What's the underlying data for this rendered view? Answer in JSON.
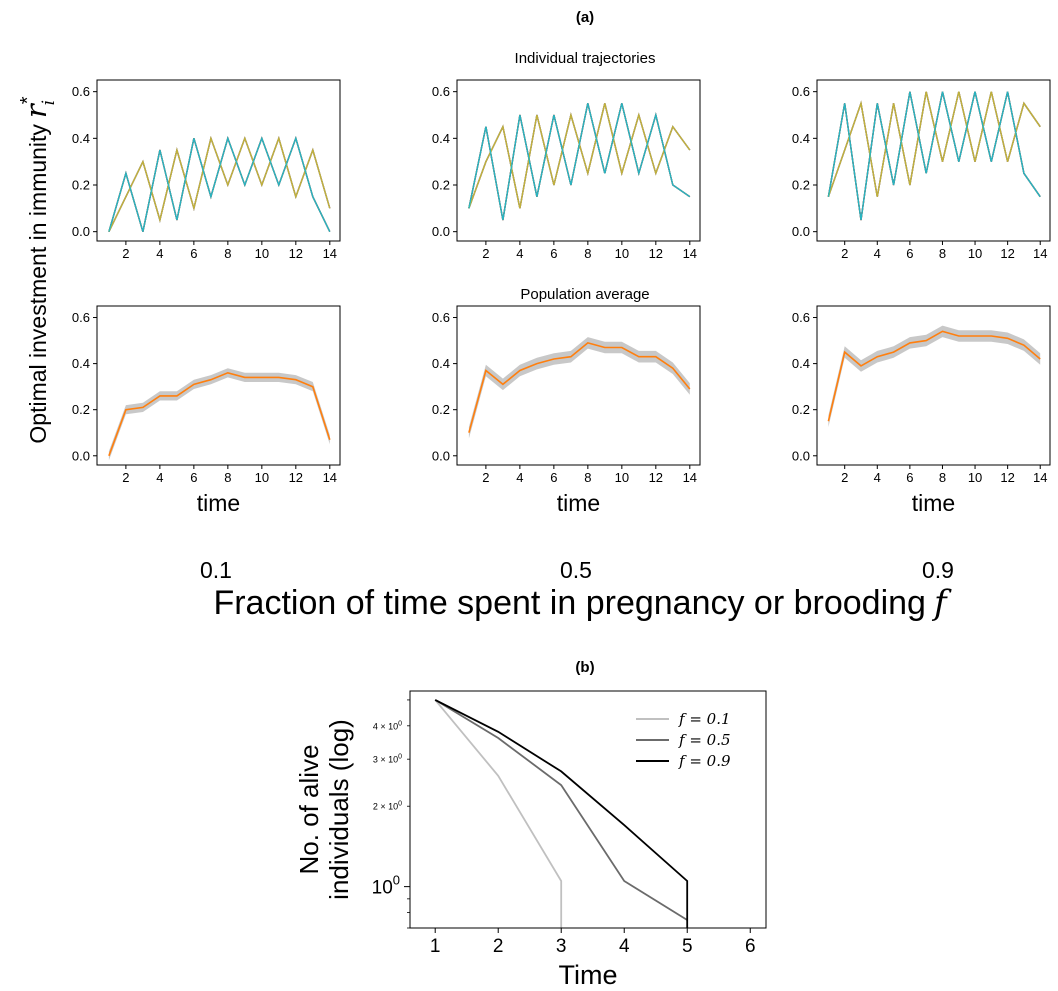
{
  "figure": {
    "panel_a_label": "(a)",
    "panel_b_label": "(b)",
    "row1_title": "Individual trajectories",
    "row2_title": "Population average",
    "shared_ylabel": "Optimal investment in immunity",
    "shared_ylabel_symbol": "r",
    "shared_ylabel_sup": "*",
    "shared_ylabel_sub": "i",
    "time_label": "time",
    "column_values": [
      "0.1",
      "0.5",
      "0.9"
    ],
    "shared_xlabel": "Fraction of time spent in pregnancy or brooding",
    "shared_xlabel_symbol": "f"
  },
  "colors": {
    "trajectory_palette": [
      "#1f77b4",
      "#ff7f0e",
      "#2ca02c",
      "#d62728",
      "#9467bd",
      "#8c564b",
      "#e377c2",
      "#7f7f7f",
      "#bcbd22",
      "#17becf"
    ],
    "mean_line": "#ff7f0e",
    "band": "#c8c8c8",
    "survival": [
      "#c0c0c0",
      "#6b6b6b",
      "#000000"
    ]
  },
  "chart_data": [
    {
      "type": "line",
      "panel": "a",
      "row": "individual",
      "column": "0.1",
      "xlim": [
        0.3,
        14.6
      ],
      "ylim": [
        -0.04,
        0.65
      ],
      "xticks": [
        2,
        4,
        6,
        8,
        10,
        12,
        14
      ],
      "yticks": [
        0.0,
        0.2,
        0.4,
        0.6
      ],
      "xticklabels": [
        "2",
        "4",
        "6",
        "8",
        "10",
        "12",
        "14"
      ],
      "yticklabels": [
        "0.0",
        "0.2",
        "0.4",
        "0.6"
      ],
      "x": [
        1,
        2,
        3,
        4,
        5,
        6,
        7,
        8,
        9,
        10,
        11,
        12,
        13,
        14
      ],
      "upper": [
        0.0,
        0.25,
        0.3,
        0.35,
        0.35,
        0.4,
        0.4,
        0.4,
        0.4,
        0.4,
        0.4,
        0.4,
        0.35,
        0.1
      ],
      "lower": [
        0.0,
        0.15,
        0.0,
        0.05,
        0.05,
        0.1,
        0.15,
        0.2,
        0.2,
        0.2,
        0.2,
        0.15,
        0.15,
        0.0
      ],
      "series_count": 10
    },
    {
      "type": "line",
      "panel": "a",
      "row": "individual",
      "column": "0.5",
      "xlim": [
        0.3,
        14.6
      ],
      "ylim": [
        -0.04,
        0.65
      ],
      "xticks": [
        2,
        4,
        6,
        8,
        10,
        12,
        14
      ],
      "yticks": [
        0.0,
        0.2,
        0.4,
        0.6
      ],
      "xticklabels": [
        "2",
        "4",
        "6",
        "8",
        "10",
        "12",
        "14"
      ],
      "yticklabels": [
        "0.0",
        "0.2",
        "0.4",
        "0.6"
      ],
      "x": [
        1,
        2,
        3,
        4,
        5,
        6,
        7,
        8,
        9,
        10,
        11,
        12,
        13,
        14
      ],
      "upper": [
        0.1,
        0.45,
        0.45,
        0.5,
        0.5,
        0.5,
        0.5,
        0.55,
        0.55,
        0.55,
        0.5,
        0.5,
        0.45,
        0.35
      ],
      "lower": [
        0.1,
        0.3,
        0.05,
        0.1,
        0.15,
        0.2,
        0.2,
        0.25,
        0.25,
        0.25,
        0.25,
        0.25,
        0.2,
        0.15
      ],
      "series_count": 10
    },
    {
      "type": "line",
      "panel": "a",
      "row": "individual",
      "column": "0.9",
      "xlim": [
        0.3,
        14.6
      ],
      "ylim": [
        -0.04,
        0.65
      ],
      "xticks": [
        2,
        4,
        6,
        8,
        10,
        12,
        14
      ],
      "yticks": [
        0.0,
        0.2,
        0.4,
        0.6
      ],
      "xticklabels": [
        "2",
        "4",
        "6",
        "8",
        "10",
        "12",
        "14"
      ],
      "yticklabels": [
        "0.0",
        "0.2",
        "0.4",
        "0.6"
      ],
      "x": [
        1,
        2,
        3,
        4,
        5,
        6,
        7,
        8,
        9,
        10,
        11,
        12,
        13,
        14
      ],
      "upper": [
        0.15,
        0.55,
        0.55,
        0.55,
        0.55,
        0.6,
        0.6,
        0.6,
        0.6,
        0.6,
        0.6,
        0.6,
        0.55,
        0.45
      ],
      "lower": [
        0.15,
        0.35,
        0.05,
        0.15,
        0.2,
        0.2,
        0.25,
        0.3,
        0.3,
        0.3,
        0.3,
        0.3,
        0.25,
        0.15
      ],
      "series_count": 10
    },
    {
      "type": "line",
      "panel": "a",
      "row": "average",
      "column": "0.1",
      "xlim": [
        0.3,
        14.6
      ],
      "ylim": [
        -0.04,
        0.65
      ],
      "xticks": [
        2,
        4,
        6,
        8,
        10,
        12,
        14
      ],
      "yticks": [
        0.0,
        0.2,
        0.4,
        0.6
      ],
      "xticklabels": [
        "2",
        "4",
        "6",
        "8",
        "10",
        "12",
        "14"
      ],
      "yticklabels": [
        "0.0",
        "0.2",
        "0.4",
        "0.6"
      ],
      "xlabel": "time",
      "x": [
        1,
        2,
        3,
        4,
        5,
        6,
        7,
        8,
        9,
        10,
        11,
        12,
        13,
        14
      ],
      "mean": [
        0.0,
        0.2,
        0.21,
        0.26,
        0.26,
        0.31,
        0.33,
        0.36,
        0.34,
        0.34,
        0.34,
        0.33,
        0.3,
        0.07
      ],
      "band": 0.02
    },
    {
      "type": "line",
      "panel": "a",
      "row": "average",
      "column": "0.5",
      "xlim": [
        0.3,
        14.6
      ],
      "ylim": [
        -0.04,
        0.65
      ],
      "xticks": [
        2,
        4,
        6,
        8,
        10,
        12,
        14
      ],
      "yticks": [
        0.0,
        0.2,
        0.4,
        0.6
      ],
      "xticklabels": [
        "2",
        "4",
        "6",
        "8",
        "10",
        "12",
        "14"
      ],
      "yticklabels": [
        "0.0",
        "0.2",
        "0.4",
        "0.6"
      ],
      "xlabel": "time",
      "x": [
        1,
        2,
        3,
        4,
        5,
        6,
        7,
        8,
        9,
        10,
        11,
        12,
        13,
        14
      ],
      "mean": [
        0.1,
        0.37,
        0.31,
        0.37,
        0.4,
        0.42,
        0.43,
        0.49,
        0.47,
        0.47,
        0.43,
        0.43,
        0.38,
        0.29
      ],
      "band": 0.025
    },
    {
      "type": "line",
      "panel": "a",
      "row": "average",
      "column": "0.9",
      "xlim": [
        0.3,
        14.6
      ],
      "ylim": [
        -0.04,
        0.65
      ],
      "xticks": [
        2,
        4,
        6,
        8,
        10,
        12,
        14
      ],
      "yticks": [
        0.0,
        0.2,
        0.4,
        0.6
      ],
      "xticklabels": [
        "2",
        "4",
        "6",
        "8",
        "10",
        "12",
        "14"
      ],
      "yticklabels": [
        "0.0",
        "0.2",
        "0.4",
        "0.6"
      ],
      "xlabel": "time",
      "x": [
        1,
        2,
        3,
        4,
        5,
        6,
        7,
        8,
        9,
        10,
        11,
        12,
        13,
        14
      ],
      "mean": [
        0.15,
        0.45,
        0.39,
        0.43,
        0.45,
        0.49,
        0.5,
        0.54,
        0.52,
        0.52,
        0.52,
        0.51,
        0.48,
        0.42
      ],
      "band": 0.025
    },
    {
      "type": "line",
      "panel": "b",
      "scale_y": "log",
      "xlim": [
        0.6,
        6.25
      ],
      "ylim": [
        0.7,
        5.4
      ],
      "xticks": [
        1,
        2,
        3,
        4,
        5,
        6
      ],
      "xticklabels": [
        "1",
        "2",
        "3",
        "4",
        "5",
        "6"
      ],
      "xlabel": "Time",
      "ylabel_line1": "No. of alive",
      "ylabel_line2": "individuals (log)",
      "yticks_major": [
        1
      ],
      "yticklabels_major": [
        "10^0"
      ],
      "yticks_minor": [
        2,
        3,
        4
      ],
      "yticklabels_minor": [
        "2 × 10^0",
        "3 × 10^0",
        "4 × 10^0"
      ],
      "series": [
        {
          "name": "f = 0.1",
          "x": [
            1,
            2,
            3,
            3
          ],
          "y": [
            5,
            2.6,
            1.05,
            0.7
          ]
        },
        {
          "name": "f = 0.5",
          "x": [
            1,
            2,
            3,
            4,
            5
          ],
          "y": [
            5,
            3.6,
            2.4,
            1.05,
            0.75
          ]
        },
        {
          "name": "f = 0.9",
          "x": [
            1,
            2,
            3,
            4,
            5,
            5
          ],
          "y": [
            5,
            3.8,
            2.7,
            1.7,
            1.05,
            0.7
          ]
        }
      ],
      "legend": "top-right"
    }
  ]
}
